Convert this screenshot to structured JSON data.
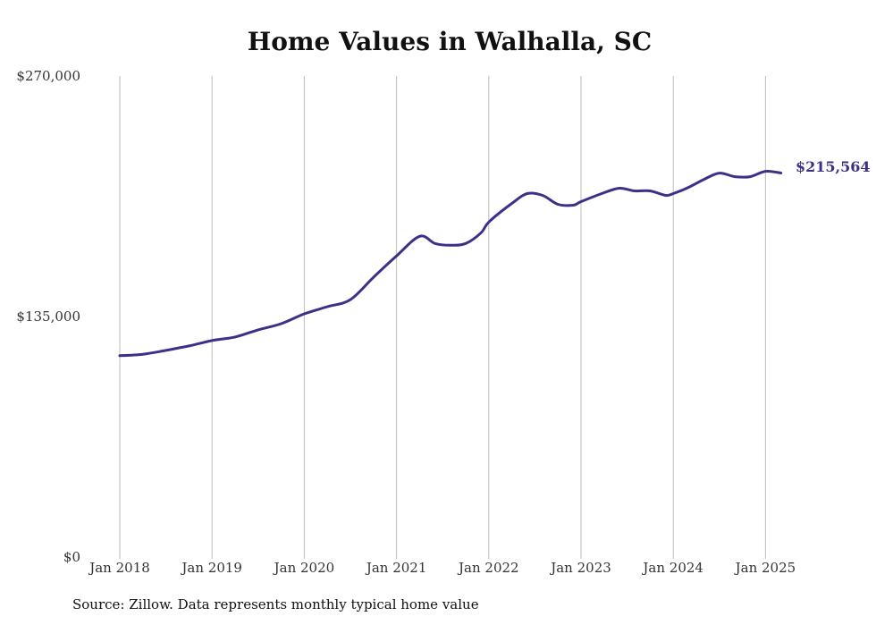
{
  "chart_data": {
    "type": "line",
    "title": "Home Values in Walhalla, SC",
    "xlabel": "",
    "ylabel": "",
    "ylim": [
      0,
      270000
    ],
    "y_ticks": [
      {
        "value": 0,
        "label": "$0"
      },
      {
        "value": 135000,
        "label": "$135,000"
      },
      {
        "value": 270000,
        "label": "$270,000"
      }
    ],
    "x_ticks": [
      "Jan 2018",
      "Jan 2019",
      "Jan 2020",
      "Jan 2021",
      "Jan 2022",
      "Jan 2023",
      "Jan 2024",
      "Jan 2025"
    ],
    "grid": "vertical",
    "line_color": "#3b3188",
    "series": [
      {
        "name": "",
        "x": [
          "2018-01",
          "2018-04",
          "2018-07",
          "2018-10",
          "2019-01",
          "2019-04",
          "2019-07",
          "2019-10",
          "2020-01",
          "2020-04",
          "2020-07",
          "2020-10",
          "2021-01",
          "2021-04",
          "2021-06",
          "2021-08",
          "2021-10",
          "2021-12",
          "2022-01",
          "2022-04",
          "2022-06",
          "2022-08",
          "2022-10",
          "2022-12",
          "2023-01",
          "2023-04",
          "2023-06",
          "2023-08",
          "2023-10",
          "2023-12",
          "2024-01",
          "2024-03",
          "2024-05",
          "2024-07",
          "2024-09",
          "2024-11",
          "2025-01",
          "2025-03"
        ],
        "values": [
          113000,
          113800,
          116000,
          118500,
          121500,
          123500,
          127500,
          131000,
          136500,
          140500,
          144500,
          157000,
          169000,
          180000,
          176000,
          175000,
          176000,
          182000,
          188000,
          198500,
          204000,
          203000,
          198000,
          197500,
          199500,
          204500,
          207000,
          205500,
          205500,
          203000,
          204000,
          207500,
          212000,
          215500,
          213500,
          213500,
          216500,
          215564
        ]
      }
    ],
    "end_label": "$215,564"
  },
  "source_note": "Source: Zillow. Data represents monthly typical home value"
}
